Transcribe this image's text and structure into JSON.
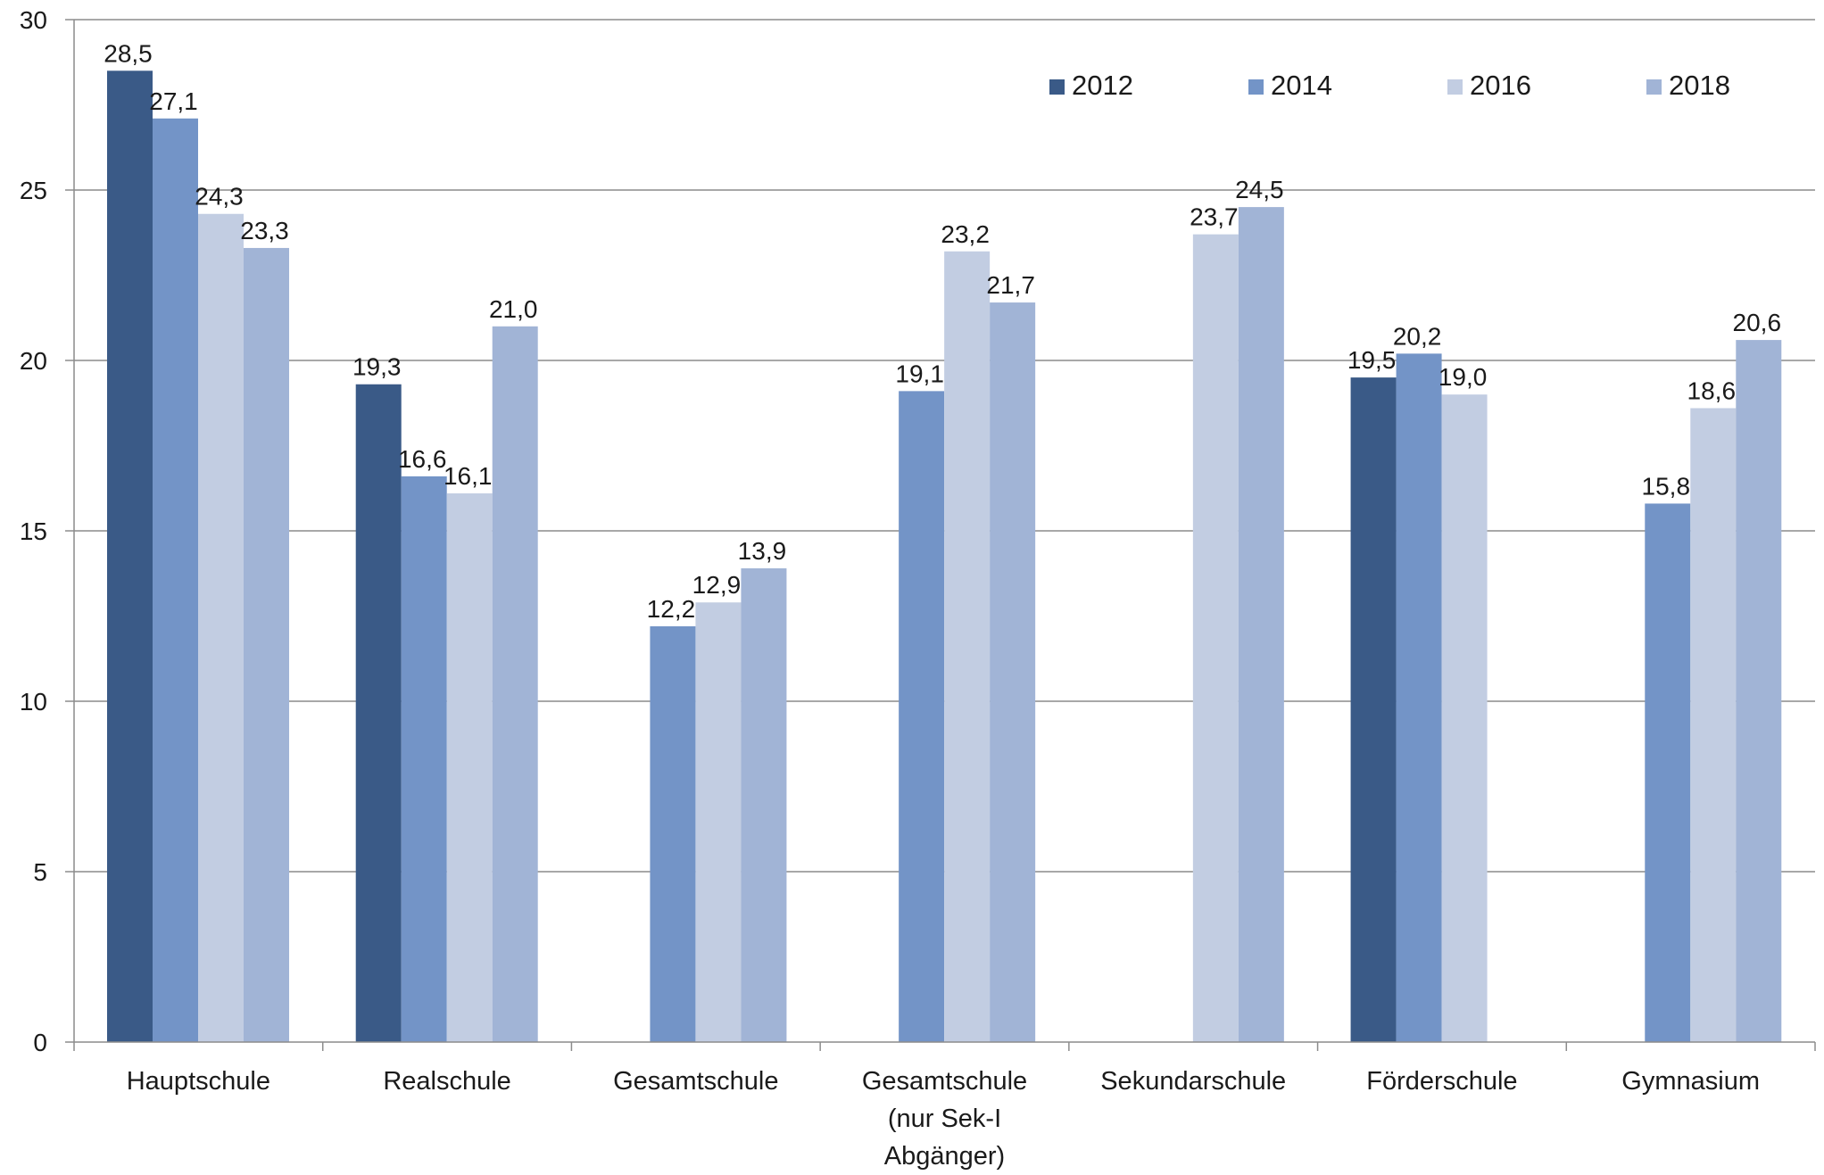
{
  "chart_data": {
    "type": "bar",
    "categories": [
      [
        "Hauptschule"
      ],
      [
        "Realschule"
      ],
      [
        "Gesamtschule"
      ],
      [
        "Gesamtschule",
        "(nur Sek-I",
        "Abgänger)"
      ],
      [
        "Sekundarschule"
      ],
      [
        "Förderschule"
      ],
      [
        "Gymnasium"
      ]
    ],
    "series": [
      {
        "name": "2012",
        "color": "#3a5a87",
        "values": [
          28.5,
          19.3,
          null,
          null,
          null,
          19.5,
          null
        ],
        "labels": [
          "28,5",
          "19,3",
          "",
          "",
          "",
          "19,5",
          ""
        ]
      },
      {
        "name": "2014",
        "color": "#7394c7",
        "values": [
          27.1,
          16.6,
          12.2,
          19.1,
          null,
          20.2,
          15.8
        ],
        "labels": [
          "27,1",
          "16,6",
          "12,2",
          "19,1",
          "",
          "20,2",
          "15,8"
        ]
      },
      {
        "name": "2016",
        "color": "#c2cde2",
        "values": [
          24.3,
          16.1,
          12.9,
          23.2,
          23.7,
          19.0,
          18.6
        ],
        "labels": [
          "24,3",
          "16,1",
          "12,9",
          "23,2",
          "23,7",
          "19,0",
          "18,6"
        ]
      },
      {
        "name": "2018",
        "color": "#a1b4d6",
        "values": [
          23.3,
          21.0,
          13.9,
          21.7,
          24.5,
          null,
          20.6
        ],
        "labels": [
          "23,3",
          "21,0",
          "13,9",
          "21,7",
          "24,5",
          "",
          "20,6"
        ]
      }
    ],
    "ylim": [
      0,
      30
    ],
    "yticks": [
      0,
      5,
      10,
      15,
      20,
      25,
      30
    ],
    "ytick_labels": [
      "0",
      "5",
      "10",
      "15",
      "20",
      "25",
      "30"
    ],
    "title": "",
    "xlabel": "",
    "ylabel": "",
    "grid": true,
    "legend_position": "top-right"
  }
}
